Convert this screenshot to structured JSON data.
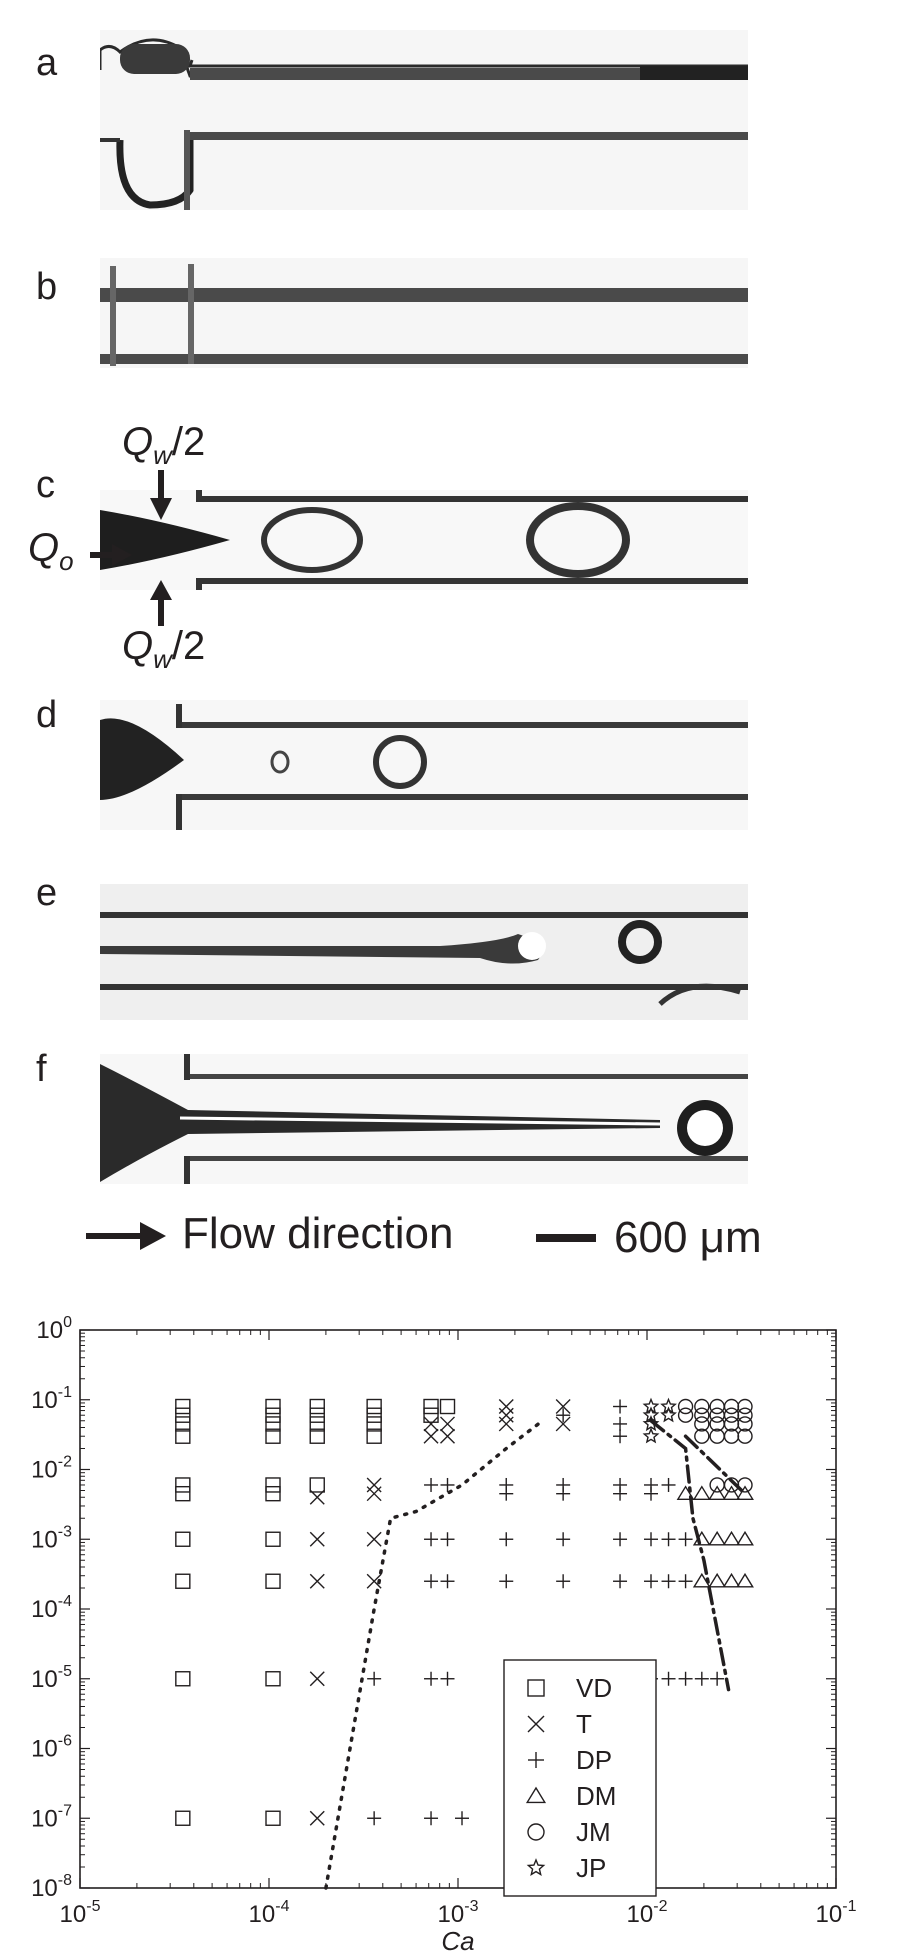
{
  "panels": [
    {
      "label": "a"
    },
    {
      "label": "b"
    },
    {
      "label": "c"
    },
    {
      "label": "d"
    },
    {
      "label": "e"
    },
    {
      "label": "f"
    }
  ],
  "annotations": {
    "qw_top": "Q",
    "qw_top_sub": "w",
    "qw_top_suffix": "/2",
    "qo": "Q",
    "qo_sub": "o",
    "qw_bottom": "Q",
    "qw_bottom_sub": "w",
    "qw_bottom_suffix": "/2"
  },
  "photo_legend": {
    "flow": "Flow direction",
    "scale": "600 μm"
  },
  "chart_data": {
    "type": "scatter",
    "xscale": "log",
    "yscale": "log",
    "xlim": [
      1e-05,
      0.1
    ],
    "ylim": [
      1e-08,
      1
    ],
    "xlabel": "Ca",
    "ylabel": "",
    "xticks": [
      {
        "base": "10",
        "exp": "-5",
        "value": 1e-05
      },
      {
        "base": "10",
        "exp": "-4",
        "value": 0.0001
      },
      {
        "base": "10",
        "exp": "-3",
        "value": 0.001
      },
      {
        "base": "10",
        "exp": "-2",
        "value": 0.01
      },
      {
        "base": "10",
        "exp": "-1",
        "value": 0.1
      }
    ],
    "yticks": [
      {
        "base": "10",
        "exp": "0",
        "value": 1
      },
      {
        "base": "10",
        "exp": "-1",
        "value": 0.1
      },
      {
        "base": "10",
        "exp": "-2",
        "value": 0.01
      },
      {
        "base": "10",
        "exp": "-3",
        "value": 0.001
      },
      {
        "base": "10",
        "exp": "-4",
        "value": 0.0001
      },
      {
        "base": "10",
        "exp": "-5",
        "value": 1e-05
      },
      {
        "base": "10",
        "exp": "-6",
        "value": 1e-06
      },
      {
        "base": "10",
        "exp": "-7",
        "value": 1e-07
      },
      {
        "base": "10",
        "exp": "-8",
        "value": 1e-08
      }
    ],
    "legend": {
      "position": "bottom-right",
      "entries": [
        {
          "key": "VD",
          "marker": "square",
          "label": "VD"
        },
        {
          "key": "T",
          "marker": "x",
          "label": "T"
        },
        {
          "key": "DP",
          "marker": "plus",
          "label": "DP"
        },
        {
          "key": "DM",
          "marker": "triangle",
          "label": "DM"
        },
        {
          "key": "JM",
          "marker": "circle",
          "label": "JM"
        },
        {
          "key": "JP",
          "marker": "star",
          "label": "JP"
        }
      ]
    },
    "series": [
      {
        "name": "VD",
        "marker": "square",
        "points": [
          [
            3.5e-05,
            0.08
          ],
          [
            3.5e-05,
            0.06
          ],
          [
            3.5e-05,
            0.045
          ],
          [
            3.5e-05,
            0.03
          ],
          [
            3.5e-05,
            0.006
          ],
          [
            3.5e-05,
            0.0045
          ],
          [
            3.5e-05,
            0.001
          ],
          [
            3.5e-05,
            0.00025
          ],
          [
            3.5e-05,
            1e-05
          ],
          [
            3.5e-05,
            1e-07
          ],
          [
            0.000105,
            0.08
          ],
          [
            0.000105,
            0.06
          ],
          [
            0.000105,
            0.045
          ],
          [
            0.000105,
            0.03
          ],
          [
            0.000105,
            0.006
          ],
          [
            0.000105,
            0.0045
          ],
          [
            0.000105,
            0.001
          ],
          [
            0.000105,
            0.00025
          ],
          [
            0.000105,
            1e-05
          ],
          [
            0.000105,
            1e-07
          ],
          [
            0.00018,
            0.08
          ],
          [
            0.00018,
            0.06
          ],
          [
            0.00018,
            0.045
          ],
          [
            0.00018,
            0.03
          ],
          [
            0.00018,
            0.006
          ],
          [
            0.00036,
            0.08
          ],
          [
            0.00036,
            0.06
          ],
          [
            0.00036,
            0.045
          ],
          [
            0.00036,
            0.03
          ],
          [
            0.00072,
            0.08
          ],
          [
            0.00088,
            0.08
          ],
          [
            0.00072,
            0.06
          ]
        ]
      },
      {
        "name": "T",
        "marker": "x",
        "points": [
          [
            0.00018,
            0.004
          ],
          [
            0.00018,
            0.001
          ],
          [
            0.00018,
            0.00025
          ],
          [
            0.00018,
            1e-05
          ],
          [
            0.00018,
            1e-07
          ],
          [
            0.00036,
            0.006
          ],
          [
            0.00036,
            0.0045
          ],
          [
            0.00036,
            0.001
          ],
          [
            0.00036,
            0.00025
          ],
          [
            0.00072,
            0.045
          ],
          [
            0.00088,
            0.045
          ],
          [
            0.00072,
            0.03
          ],
          [
            0.00088,
            0.03
          ],
          [
            0.0018,
            0.08
          ],
          [
            0.0018,
            0.06
          ],
          [
            0.0018,
            0.045
          ],
          [
            0.0036,
            0.08
          ],
          [
            0.0036,
            0.045
          ]
        ]
      },
      {
        "name": "DP",
        "marker": "plus",
        "points": [
          [
            0.00036,
            1e-05
          ],
          [
            0.00036,
            1e-07
          ],
          [
            0.00072,
            0.006
          ],
          [
            0.00088,
            0.006
          ],
          [
            0.00072,
            0.001
          ],
          [
            0.00088,
            0.001
          ],
          [
            0.00072,
            0.00025
          ],
          [
            0.00088,
            0.00025
          ],
          [
            0.00072,
            1e-05
          ],
          [
            0.00088,
            1e-05
          ],
          [
            0.00072,
            1e-07
          ],
          [
            0.00105,
            1e-07
          ],
          [
            0.0018,
            0.006
          ],
          [
            0.0018,
            0.0045
          ],
          [
            0.0018,
            0.001
          ],
          [
            0.0018,
            0.00025
          ],
          [
            0.0036,
            0.06
          ],
          [
            0.0036,
            0.006
          ],
          [
            0.0036,
            0.0045
          ],
          [
            0.0036,
            0.001
          ],
          [
            0.0036,
            0.00025
          ],
          [
            0.0072,
            0.08
          ],
          [
            0.0072,
            0.045
          ],
          [
            0.0072,
            0.03
          ],
          [
            0.0072,
            0.006
          ],
          [
            0.0072,
            0.0045
          ],
          [
            0.0072,
            0.001
          ],
          [
            0.0072,
            0.00025
          ],
          [
            0.0105,
            0.006
          ],
          [
            0.0105,
            0.0045
          ],
          [
            0.0105,
            0.001
          ],
          [
            0.0105,
            0.00025
          ],
          [
            0.0105,
            1e-05
          ],
          [
            0.013,
            0.006
          ],
          [
            0.013,
            0.001
          ],
          [
            0.013,
            0.00025
          ],
          [
            0.013,
            1e-05
          ],
          [
            0.016,
            0.001
          ],
          [
            0.016,
            0.00025
          ],
          [
            0.016,
            1e-05
          ],
          [
            0.0195,
            1e-05
          ],
          [
            0.0235,
            1e-05
          ]
        ]
      },
      {
        "name": "DM",
        "marker": "triangle",
        "points": [
          [
            0.016,
            0.0045
          ],
          [
            0.0195,
            0.0045
          ],
          [
            0.0235,
            0.0045
          ],
          [
            0.028,
            0.0045
          ],
          [
            0.033,
            0.0045
          ],
          [
            0.0195,
            0.001
          ],
          [
            0.0235,
            0.001
          ],
          [
            0.028,
            0.001
          ],
          [
            0.033,
            0.001
          ],
          [
            0.0195,
            0.00025
          ],
          [
            0.0235,
            0.00025
          ],
          [
            0.028,
            0.00025
          ],
          [
            0.033,
            0.00025
          ]
        ]
      },
      {
        "name": "JM",
        "marker": "circle",
        "points": [
          [
            0.016,
            0.08
          ],
          [
            0.0195,
            0.08
          ],
          [
            0.0235,
            0.08
          ],
          [
            0.028,
            0.08
          ],
          [
            0.033,
            0.08
          ],
          [
            0.016,
            0.06
          ],
          [
            0.0195,
            0.06
          ],
          [
            0.0235,
            0.06
          ],
          [
            0.028,
            0.06
          ],
          [
            0.033,
            0.06
          ],
          [
            0.0195,
            0.045
          ],
          [
            0.0235,
            0.045
          ],
          [
            0.028,
            0.045
          ],
          [
            0.033,
            0.045
          ],
          [
            0.0195,
            0.03
          ],
          [
            0.0235,
            0.03
          ],
          [
            0.028,
            0.03
          ],
          [
            0.033,
            0.03
          ],
          [
            0.0235,
            0.006
          ],
          [
            0.028,
            0.006
          ],
          [
            0.033,
            0.006
          ]
        ]
      },
      {
        "name": "JP",
        "marker": "star",
        "points": [
          [
            0.0105,
            0.08
          ],
          [
            0.013,
            0.08
          ],
          [
            0.0105,
            0.06
          ],
          [
            0.013,
            0.06
          ],
          [
            0.0105,
            0.045
          ],
          [
            0.0105,
            0.03
          ]
        ]
      }
    ],
    "boundaries": [
      {
        "style": "dotted",
        "points": [
          [
            0.0002,
            1e-08
          ],
          [
            0.00036,
            0.0001
          ],
          [
            0.00044,
            0.002
          ],
          [
            0.0006,
            0.0025
          ],
          [
            0.00105,
            0.006
          ],
          [
            0.0018,
            0.02
          ],
          [
            0.0028,
            0.05
          ]
        ]
      },
      {
        "style": "dash-dot",
        "points": [
          [
            0.0105,
            0.05
          ],
          [
            0.016,
            0.02
          ],
          [
            0.0175,
            0.002
          ],
          [
            0.02,
            0.0005
          ],
          [
            0.027,
            7e-06
          ]
        ]
      },
      {
        "style": "dash-dot",
        "points": [
          [
            0.016,
            0.03
          ],
          [
            0.033,
            0.0045
          ]
        ]
      }
    ]
  }
}
